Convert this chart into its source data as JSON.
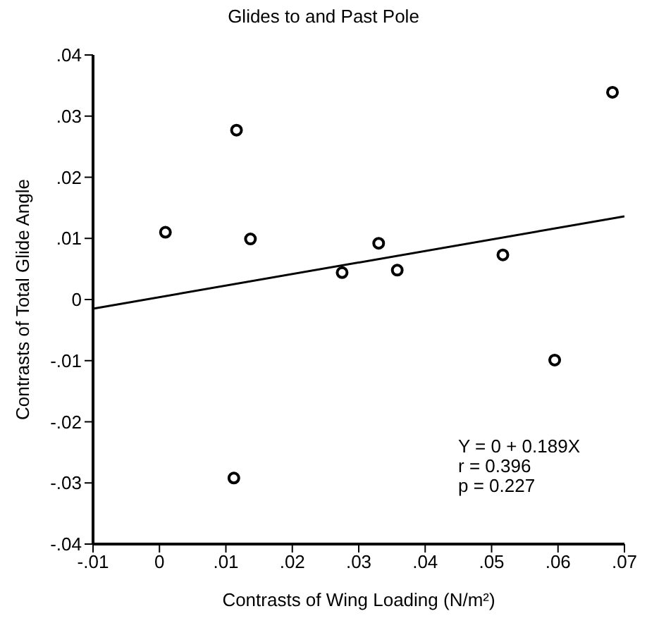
{
  "chart_data": {
    "type": "scatter",
    "title": "Glides to and Past Pole",
    "xlabel": "Contrasts of Wing Loading (N/m²)",
    "ylabel": "Contrasts of Total Glide Angle",
    "series": [
      {
        "color": "#000000",
        "marker": "circle",
        "x": [
          0.0009,
          0.0116,
          0.0137,
          0.0275,
          0.033,
          0.0358,
          0.0517,
          0.0682,
          0.0595,
          0.0112
        ],
        "values": [
          0.011,
          0.0277,
          0.0099,
          0.0044,
          0.0092,
          0.0048,
          0.0073,
          0.0339,
          -0.0099,
          -0.0292
        ]
      },
      {
        "type": "line",
        "color": "#000000",
        "x": [
          -0.01,
          0.07
        ],
        "values": [
          -0.0015,
          0.0136
        ]
      }
    ],
    "xlim": [
      -0.01,
      0.07
    ],
    "xticks": [
      {
        "value": -0.01,
        "label": "-.01"
      },
      0,
      {
        "value": 0.01,
        "label": ".01"
      },
      {
        "value": 0.02,
        "label": ".02"
      },
      {
        "value": 0.03,
        "label": ".03"
      },
      {
        "value": 0.04,
        "label": ".04"
      },
      {
        "value": 0.05,
        "label": ".05"
      },
      {
        "value": 0.06,
        "label": ".06"
      },
      {
        "value": 0.07,
        "label": ".07"
      }
    ],
    "ylim": [
      -0.04,
      0.04
    ],
    "yticks": [
      {
        "value": -0.04,
        "label": "-.04"
      },
      {
        "value": -0.03,
        "label": "-.03"
      },
      {
        "value": -0.02,
        "label": "-.02"
      },
      {
        "value": -0.01,
        "label": "-.01"
      },
      0,
      {
        "value": 0.01,
        "label": ".01"
      },
      {
        "value": 0.02,
        "label": ".02"
      },
      {
        "value": 0.03,
        "label": ".03"
      },
      {
        "value": 0.04,
        "label": ".04"
      }
    ],
    "annotations": [
      "Y = 0 + 0.189X",
      "r = 0.396",
      "p = 0.227"
    ],
    "grid": false,
    "legend": false
  }
}
